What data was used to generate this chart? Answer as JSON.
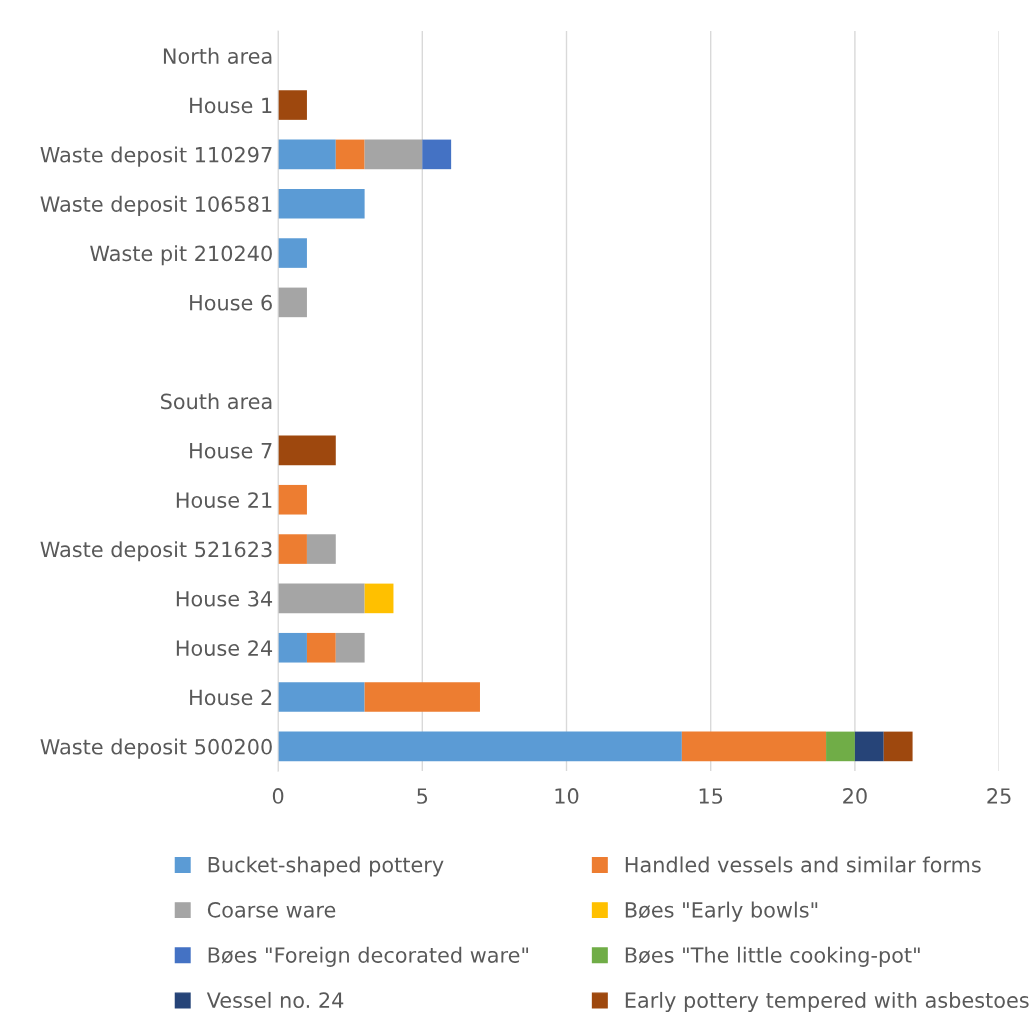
{
  "chart_data": {
    "type": "bar",
    "orientation": "horizontal",
    "stacked": true,
    "categories": [
      "North area",
      "House 1",
      "Waste deposit 110297",
      "Waste deposit 106581",
      "Waste pit 210240",
      "House 6",
      null,
      "South area",
      "House 7",
      "House 21",
      "Waste deposit 521623",
      "House 34",
      "House 24",
      "House 2",
      "Waste deposit 500200"
    ],
    "series": [
      {
        "name": "Bucket-shaped pottery",
        "color": "#5b9bd5",
        "values": [
          null,
          null,
          2,
          3,
          1,
          null,
          null,
          null,
          null,
          null,
          null,
          null,
          1,
          3,
          14
        ]
      },
      {
        "name": "Handled vessels and similar forms",
        "color": "#ed7d31",
        "values": [
          null,
          null,
          1,
          null,
          null,
          null,
          null,
          null,
          null,
          1,
          1,
          null,
          1,
          4,
          5
        ]
      },
      {
        "name": "Coarse ware",
        "color": "#a5a5a5",
        "values": [
          null,
          null,
          2,
          null,
          null,
          1,
          null,
          null,
          null,
          null,
          1,
          3,
          1,
          null,
          null
        ]
      },
      {
        "name": "Bøes \"Early bowls\"",
        "color": "#ffc000",
        "values": [
          null,
          null,
          null,
          null,
          null,
          null,
          null,
          null,
          null,
          null,
          null,
          1,
          null,
          null,
          null
        ]
      },
      {
        "name": "Bøes \"Foreign decorated ware\"",
        "color": "#4472c4",
        "values": [
          null,
          null,
          1,
          null,
          null,
          null,
          null,
          null,
          null,
          null,
          null,
          null,
          null,
          null,
          null
        ]
      },
      {
        "name": "Bøes \"The little cooking-pot\"",
        "color": "#70ad47",
        "values": [
          null,
          null,
          null,
          null,
          null,
          null,
          null,
          null,
          null,
          null,
          null,
          null,
          null,
          null,
          1
        ]
      },
      {
        "name": "Vessel no. 24",
        "color": "#264478",
        "values": [
          null,
          null,
          null,
          null,
          null,
          null,
          null,
          null,
          null,
          null,
          null,
          null,
          null,
          null,
          1
        ]
      },
      {
        "name": "Early pottery tempered with asbestoes",
        "color": "#9e480e",
        "values": [
          null,
          1,
          null,
          null,
          null,
          null,
          null,
          null,
          2,
          null,
          null,
          null,
          null,
          null,
          1
        ]
      }
    ],
    "xlim": [
      0,
      25
    ],
    "xticks": [
      0,
      5,
      10,
      15,
      20,
      25
    ],
    "grid": "x",
    "legend": "bottom"
  }
}
